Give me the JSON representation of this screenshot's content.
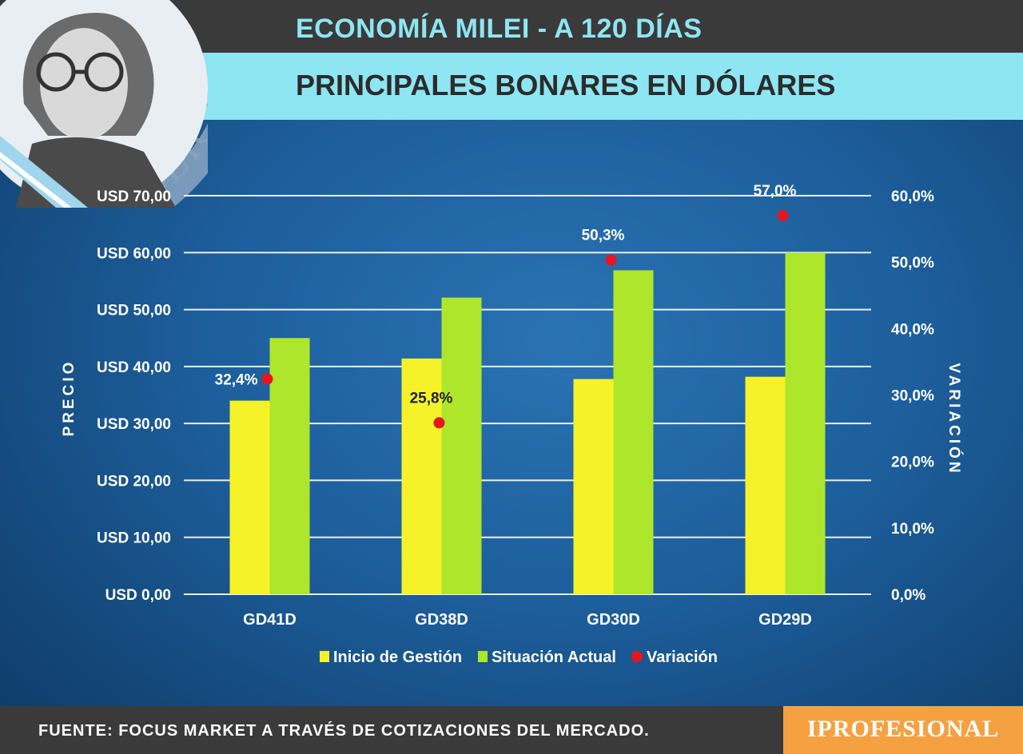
{
  "header": {
    "title": "ECONOMÍA MILEI - A 120 DÍAS",
    "subtitle": "PRINCIPALES BONARES EN DÓLARES",
    "seal_text": "REPÚBLICA ARGENTINA NO"
  },
  "footer": {
    "source": "FUENTE: FOCUS MARKET A TRAVÉS DE COTIZACIONES DEL MERCADO.",
    "brand": "IPROFESIONAL"
  },
  "colors": {
    "inicio": "#f5f22a",
    "actual": "#aee62b",
    "variacion": "#e8141e",
    "header_accent": "#8ee6f2",
    "brand": "#f5a142"
  },
  "chart_data": {
    "type": "bar",
    "categories": [
      "GD41D",
      "GD38D",
      "GD30D",
      "GD29D"
    ],
    "series": [
      {
        "name": "Inicio de Gestión",
        "type": "bar",
        "axis": "left",
        "values": [
          34.0,
          41.4,
          37.8,
          38.2
        ]
      },
      {
        "name": "Situación Actual",
        "type": "bar",
        "axis": "left",
        "values": [
          45.0,
          52.1,
          56.9,
          60.0
        ]
      },
      {
        "name": "Variación",
        "type": "scatter",
        "axis": "right",
        "values": [
          32.4,
          25.8,
          50.3,
          57.0
        ],
        "labels": [
          "32,4%",
          "25,8%",
          "50,3%",
          "57,0%"
        ]
      }
    ],
    "ylabel": "PRECIO",
    "y2label": "VARIACIÓN",
    "ylim": [
      0,
      70
    ],
    "y2lim": [
      0,
      60
    ],
    "yticks": [
      "USD 0,00",
      "USD 10,00",
      "USD 20,00",
      "USD 30,00",
      "USD 40,00",
      "USD 50,00",
      "USD 60,00",
      "USD 70,00"
    ],
    "y2ticks": [
      "0,0%",
      "10,0%",
      "20,0%",
      "30,0%",
      "40,0%",
      "50,0%",
      "60,0%"
    ],
    "grid": true,
    "legend_position": "bottom"
  }
}
